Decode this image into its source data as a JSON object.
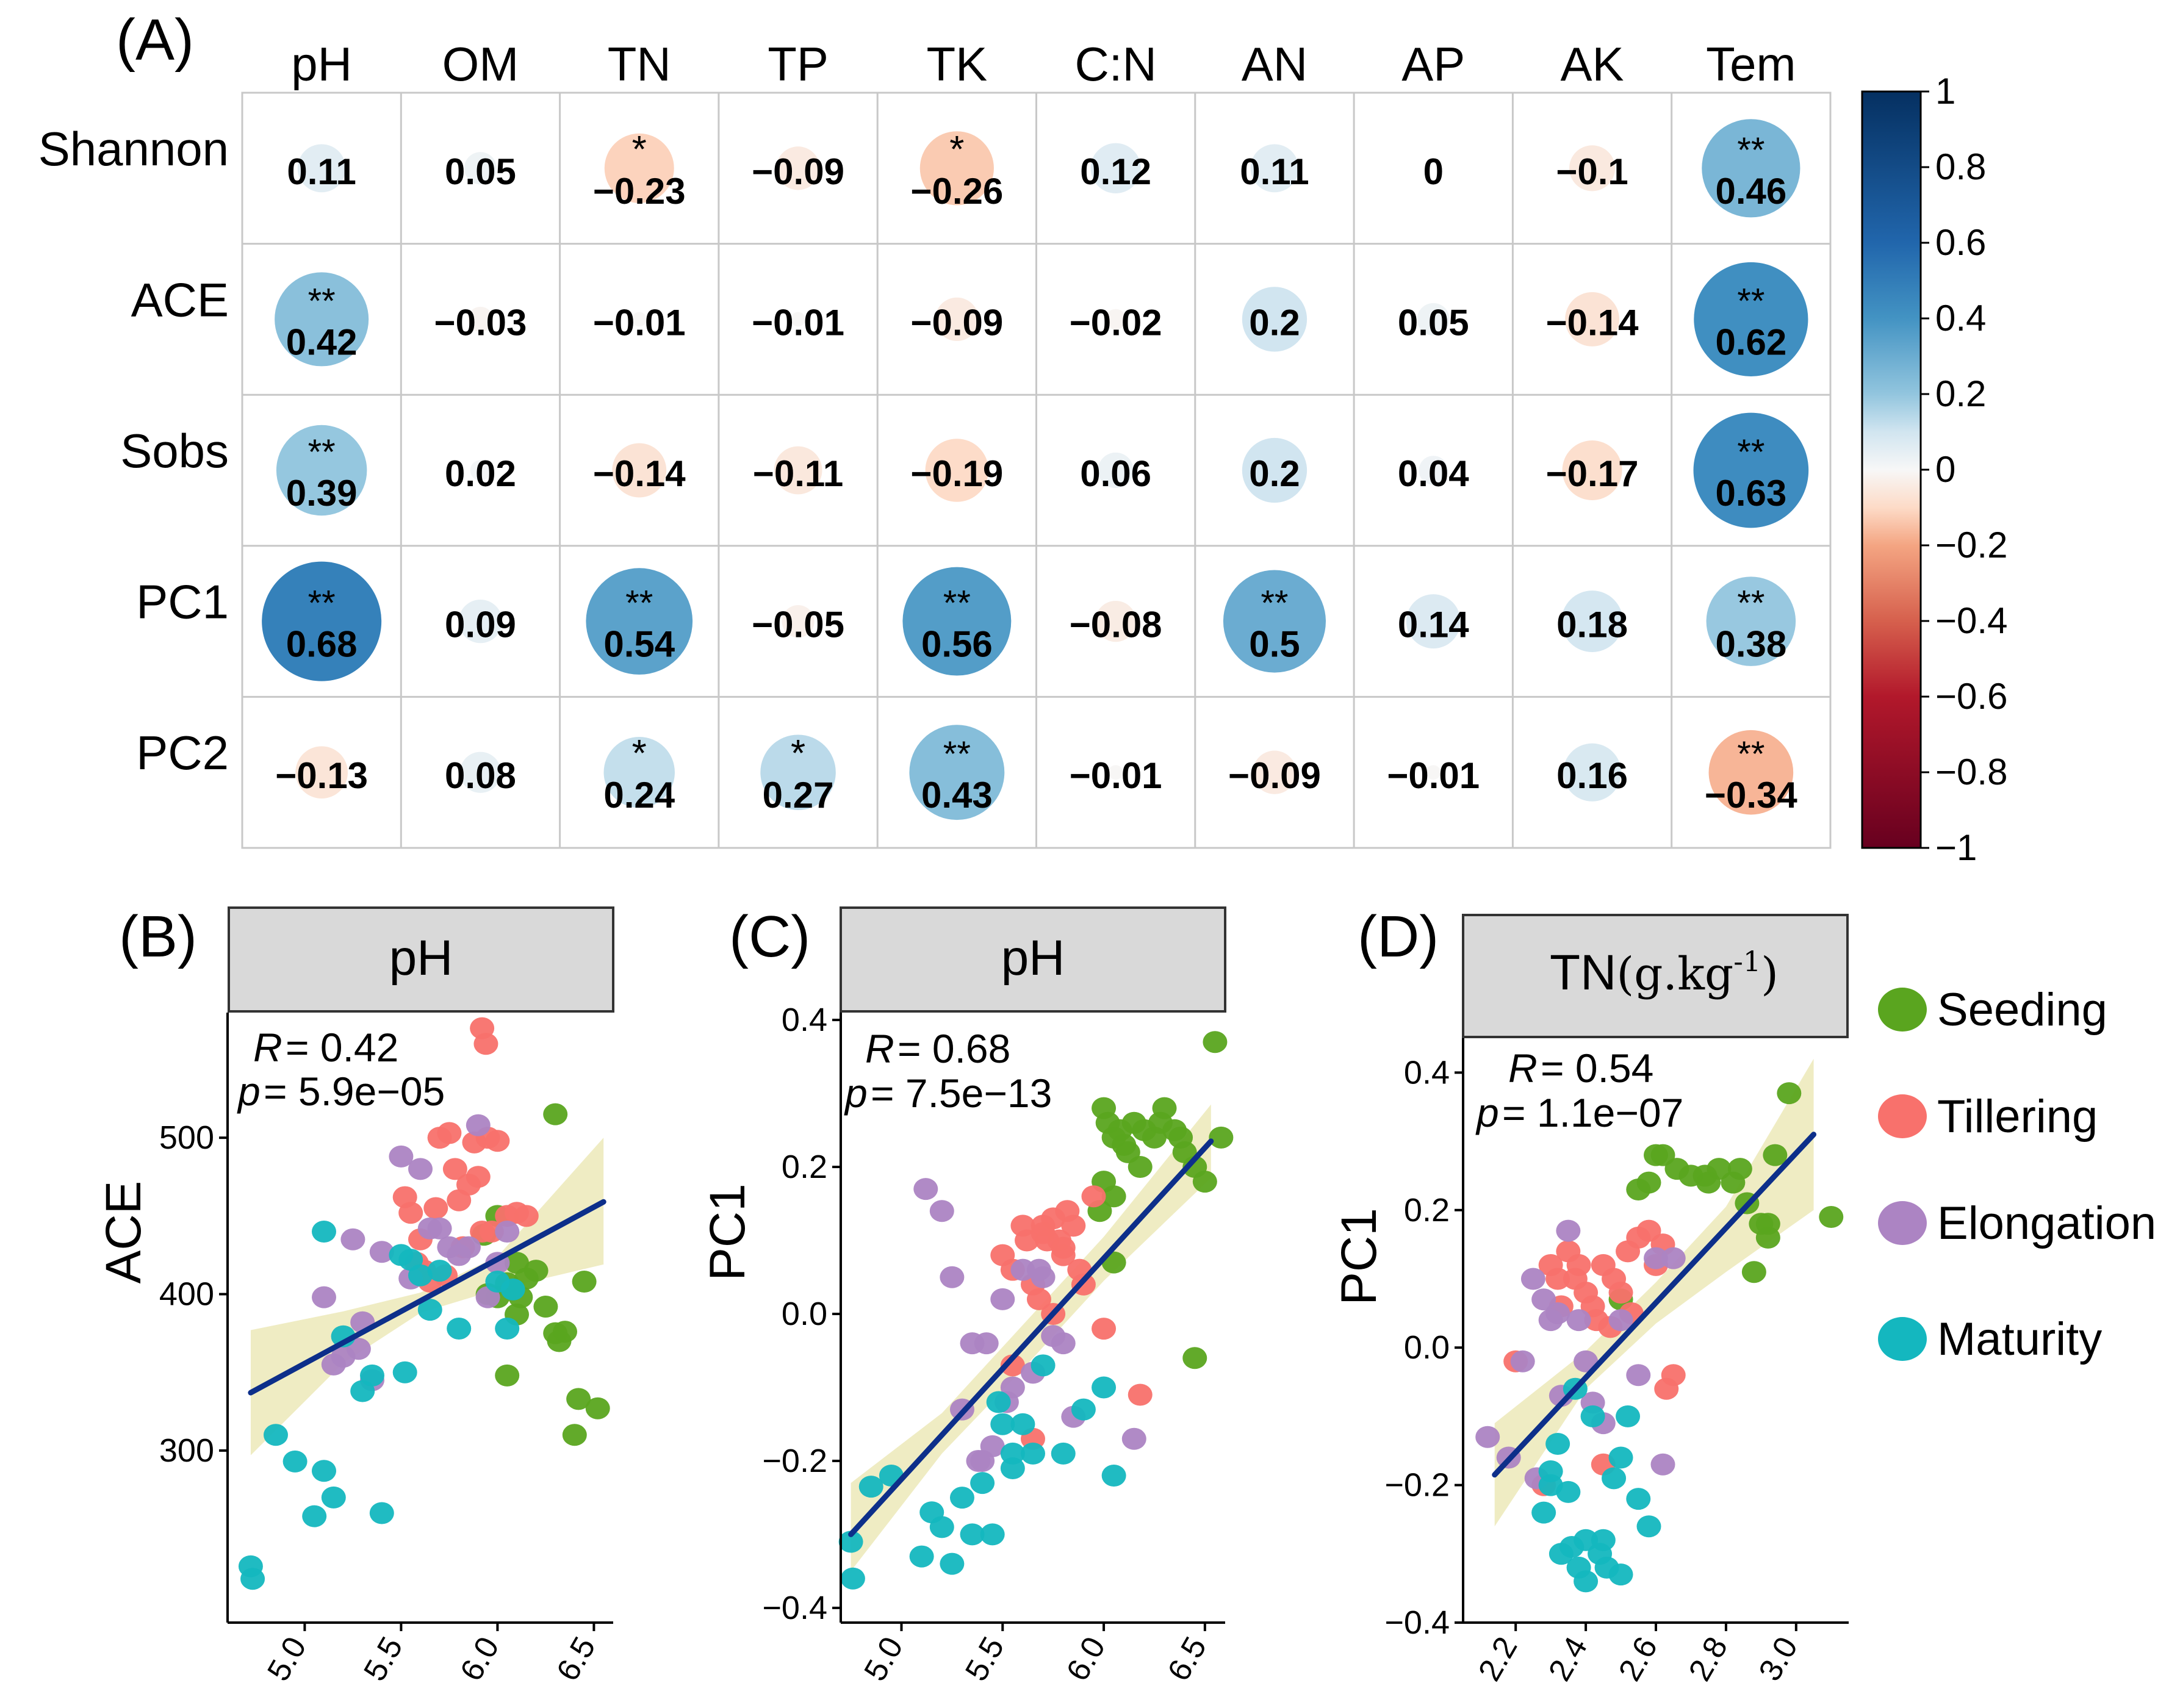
{
  "figure": {
    "colors": {
      "grid_line": "#c8c8c8",
      "panel_header_fill": "#d9d9d9",
      "regression_line": "#0d2f8a",
      "confidence_band": "#ece9b8",
      "scale_positive_strong": "#053061",
      "scale_positive_mid": "#4393c3",
      "scale_neutral": "#f7f7f7",
      "scale_negative_mid": "#f4a582",
      "scale_negative_strong": "#67001f"
    }
  },
  "chart_data": [
    {
      "type": "heatmap",
      "panel_label": "(A)",
      "columns": [
        "pH",
        "OM",
        "TN",
        "TP",
        "TK",
        "C:N",
        "AN",
        "AP",
        "AK",
        "Tem"
      ],
      "rows": [
        "Shannon",
        "ACE",
        "Sobs",
        "PC1",
        "PC2"
      ],
      "values": [
        [
          0.11,
          0.05,
          -0.23,
          -0.09,
          -0.26,
          0.12,
          0.11,
          0,
          -0.1,
          0.46
        ],
        [
          0.42,
          -0.03,
          -0.01,
          -0.01,
          -0.09,
          -0.02,
          0.2,
          0.05,
          -0.14,
          0.62
        ],
        [
          0.39,
          0.02,
          -0.14,
          -0.11,
          -0.19,
          0.06,
          0.2,
          0.04,
          -0.17,
          0.63
        ],
        [
          0.68,
          0.09,
          0.54,
          -0.05,
          0.56,
          -0.08,
          0.5,
          0.14,
          0.18,
          0.38
        ],
        [
          -0.13,
          0.08,
          0.24,
          0.27,
          0.43,
          -0.01,
          -0.09,
          -0.01,
          0.16,
          -0.34
        ]
      ],
      "value_labels": [
        [
          "0.11",
          "0.05",
          "−0.23",
          "−0.09",
          "−0.26",
          "0.12",
          "0.11",
          "0",
          "−0.1",
          "0.46"
        ],
        [
          "0.42",
          "−0.03",
          "−0.01",
          "−0.01",
          "−0.09",
          "−0.02",
          "0.2",
          "0.05",
          "−0.14",
          "0.62"
        ],
        [
          "0.39",
          "0.02",
          "−0.14",
          "−0.11",
          "−0.19",
          "0.06",
          "0.2",
          "0.04",
          "−0.17",
          "0.63"
        ],
        [
          "0.68",
          "0.09",
          "0.54",
          "−0.05",
          "0.56",
          "−0.08",
          "0.5",
          "0.14",
          "0.18",
          "0.38"
        ],
        [
          "−0.13",
          "0.08",
          "0.24",
          "0.27",
          "0.43",
          "−0.01",
          "−0.09",
          "−0.01",
          "0.16",
          "−0.34"
        ]
      ],
      "significance": [
        [
          "",
          "",
          "*",
          "",
          "*",
          "",
          "",
          "",
          "",
          "**"
        ],
        [
          "**",
          "",
          "",
          "",
          "",
          "",
          "",
          "",
          "",
          "**"
        ],
        [
          "**",
          "",
          "",
          "",
          "",
          "",
          "",
          "",
          "",
          "**"
        ],
        [
          "**",
          "",
          "**",
          "",
          "**",
          "",
          "**",
          "",
          "",
          "**"
        ],
        [
          "",
          "",
          "*",
          "*",
          "**",
          "",
          "",
          "",
          "",
          "**"
        ]
      ],
      "colorbar": {
        "range": [
          -1,
          1
        ],
        "tick_values": [
          1,
          0.8,
          0.6,
          0.4,
          0.2,
          0,
          -0.2,
          -0.4,
          -0.6,
          -0.8,
          -1
        ],
        "tick_labels": [
          "1",
          "0.8",
          "0.6",
          "0.4",
          "0.2",
          "0",
          "−0.2",
          "−0.4",
          "−0.6",
          "−0.8",
          "−1"
        ]
      }
    },
    {
      "type": "scatter",
      "panel_label": "(B)",
      "strip_title": "pH",
      "xlabel": "",
      "ylabel": "ACE",
      "xlim": [
        4.6,
        6.6
      ],
      "ylim": [
        190,
        580
      ],
      "xticks": [
        5.0,
        5.5,
        6.0,
        6.5
      ],
      "xtick_labels": [
        "5.0",
        "5.5",
        "6.0",
        "6.5"
      ],
      "yticks": [
        300,
        400,
        500
      ],
      "ytick_labels": [
        "300",
        "400",
        "500"
      ],
      "stats": {
        "r_label": "R",
        "r_value": "= 0.42",
        "p_label": "p",
        "p_value": "= 5.9e−05"
      },
      "fit": {
        "x": [
          4.72,
          6.55
        ],
        "y": [
          337,
          459
        ]
      },
      "band": {
        "x": [
          4.72,
          5.2,
          5.6,
          6.0,
          6.55
        ],
        "lower": [
          297,
          356,
          388,
          403,
          419
        ],
        "upper": [
          377,
          389,
          401,
          424,
          500
        ]
      },
      "series": [
        {
          "name": "Seeding",
          "x": [
            5.93,
            6.0,
            6.05,
            6.1,
            6.15,
            6.2,
            6.3,
            6.3,
            6.32,
            6.35,
            6.4,
            6.42,
            6.45,
            6.52,
            6.1,
            6.05,
            6.12,
            6.25,
            5.95,
            6.0,
            6.08
          ],
          "y": [
            438,
            450,
            407,
            420,
            410,
            415,
            375,
            515,
            370,
            376,
            310,
            333,
            408,
            327,
            387,
            348,
            398,
            392,
            400,
            398,
            403
          ]
        },
        {
          "name": "Tillering",
          "x": [
            5.52,
            5.55,
            5.6,
            5.62,
            5.68,
            5.7,
            5.75,
            5.78,
            5.8,
            5.85,
            5.88,
            5.9,
            5.92,
            5.95,
            6.0,
            6.05,
            6.1,
            6.15,
            5.58,
            5.65,
            5.73,
            5.82,
            5.97,
            5.92,
            5.94
          ],
          "y": [
            462,
            452,
            435,
            415,
            455,
            500,
            503,
            480,
            460,
            470,
            497,
            475,
            440,
            500,
            498,
            450,
            452,
            450,
            420,
            408,
            412,
            430,
            440,
            570,
            560
          ]
        },
        {
          "name": "Elongation",
          "x": [
            5.1,
            5.2,
            5.25,
            5.3,
            5.35,
            5.4,
            5.5,
            5.55,
            5.6,
            5.65,
            5.7,
            5.75,
            5.8,
            5.85,
            5.9,
            5.95,
            6.0,
            6.05,
            5.15,
            5.28
          ],
          "y": [
            398,
            360,
            435,
            382,
            345,
            427,
            488,
            410,
            480,
            442,
            442,
            430,
            425,
            430,
            508,
            398,
            420,
            440,
            355,
            365
          ]
        },
        {
          "name": "Maturity",
          "x": [
            4.72,
            4.73,
            4.85,
            4.95,
            5.05,
            5.1,
            5.1,
            5.15,
            5.2,
            5.3,
            5.35,
            5.4,
            5.5,
            5.55,
            5.6,
            5.65,
            5.7,
            5.8,
            6.0,
            6.05,
            6.08,
            5.52
          ],
          "y": [
            226,
            218,
            310,
            293,
            258,
            440,
            287,
            270,
            373,
            338,
            348,
            260,
            425,
            422,
            412,
            390,
            415,
            378,
            408,
            378,
            403,
            350
          ]
        }
      ]
    },
    {
      "type": "scatter",
      "panel_label": "(C)",
      "strip_title": "pH",
      "xlabel": "",
      "ylabel": "PC1",
      "xlim": [
        4.7,
        6.6
      ],
      "ylim": [
        -0.42,
        0.41
      ],
      "xticks": [
        5.0,
        5.5,
        6.0,
        6.5
      ],
      "xtick_labels": [
        "5.0",
        "5.5",
        "6.0",
        "6.5"
      ],
      "yticks": [
        -0.4,
        -0.2,
        0.0,
        0.2,
        0.4
      ],
      "ytick_labels": [
        "−0.4",
        "−0.2",
        "0.0",
        "0.2",
        "0.4"
      ],
      "stats": {
        "r_label": "R",
        "r_value": "= 0.68",
        "p_label": "p",
        "p_value": "= 7.5e−13"
      },
      "fit": {
        "x": [
          4.75,
          6.53
        ],
        "y": [
          -0.3,
          0.235
        ]
      },
      "band": {
        "x": [
          4.75,
          5.2,
          5.6,
          6.0,
          6.53
        ],
        "lower": [
          -0.35,
          -0.19,
          -0.075,
          0.045,
          0.185
        ],
        "upper": [
          -0.23,
          -0.135,
          -0.015,
          0.105,
          0.285
        ]
      },
      "series": [
        {
          "name": "Seeding",
          "x": [
            6.0,
            6.02,
            6.05,
            6.08,
            6.1,
            6.15,
            6.2,
            6.25,
            6.3,
            6.35,
            6.4,
            6.45,
            6.5,
            6.55,
            6.0,
            6.05,
            6.12,
            6.18,
            6.28,
            5.98,
            6.38,
            6.45,
            6.05,
            6.58
          ],
          "y": [
            0.28,
            0.26,
            0.24,
            0.25,
            0.23,
            0.26,
            0.25,
            0.24,
            0.28,
            0.25,
            0.22,
            0.2,
            0.18,
            0.37,
            0.18,
            0.16,
            0.22,
            0.2,
            0.26,
            0.14,
            0.24,
            -0.06,
            0.07,
            0.24
          ]
        },
        {
          "name": "Tillering",
          "x": [
            5.5,
            5.55,
            5.6,
            5.62,
            5.65,
            5.68,
            5.7,
            5.72,
            5.75,
            5.78,
            5.8,
            5.82,
            5.85,
            5.88,
            5.9,
            5.95,
            6.0,
            5.75,
            5.65,
            6.18,
            5.55,
            5.7,
            5.8
          ],
          "y": [
            0.08,
            0.06,
            0.12,
            0.1,
            0.04,
            0.02,
            0.12,
            0.1,
            0.13,
            0.1,
            0.08,
            0.14,
            0.12,
            0.06,
            0.04,
            0.16,
            -0.02,
            0.0,
            -0.17,
            -0.11,
            -0.07,
            0.11,
            0.09
          ]
        },
        {
          "name": "Elongation",
          "x": [
            5.12,
            5.2,
            5.25,
            5.3,
            5.35,
            5.4,
            5.45,
            5.5,
            5.55,
            5.6,
            5.65,
            5.7,
            5.75,
            5.8,
            5.85,
            5.42,
            5.52,
            6.15,
            5.68,
            5.38
          ],
          "y": [
            0.17,
            0.14,
            0.05,
            -0.13,
            -0.04,
            -0.2,
            -0.18,
            0.02,
            -0.1,
            0.06,
            -0.08,
            0.05,
            -0.03,
            -0.04,
            -0.14,
            -0.04,
            -0.12,
            -0.17,
            0.06,
            -0.2
          ]
        },
        {
          "name": "Maturity",
          "x": [
            4.75,
            4.76,
            4.85,
            4.95,
            5.1,
            5.15,
            5.2,
            5.25,
            5.3,
            5.35,
            5.4,
            5.45,
            5.5,
            5.55,
            5.6,
            5.65,
            5.7,
            5.8,
            5.9,
            6.0,
            6.05,
            5.48,
            5.55
          ],
          "y": [
            -0.31,
            -0.36,
            -0.235,
            -0.22,
            -0.33,
            -0.27,
            -0.29,
            -0.34,
            -0.25,
            -0.3,
            -0.23,
            -0.3,
            -0.15,
            -0.21,
            -0.15,
            -0.19,
            -0.07,
            -0.19,
            -0.13,
            -0.1,
            -0.22,
            -0.12,
            -0.19
          ]
        }
      ]
    },
    {
      "type": "scatter",
      "panel_label": "(D)",
      "strip_title": "TN",
      "strip_unit": "(g.kg",
      "strip_unit_exp": "-1",
      "strip_unit_close": ")",
      "xlabel": "",
      "ylabel": "PC1",
      "xlim": [
        2.05,
        3.15
      ],
      "ylim": [
        -0.4,
        0.45
      ],
      "xticks": [
        2.2,
        2.4,
        2.6,
        2.8,
        3.0
      ],
      "xtick_labels": [
        "2.2",
        "2.4",
        "2.6",
        "2.8",
        "3.0"
      ],
      "yticks": [
        -0.4,
        -0.2,
        0.0,
        0.2,
        0.4
      ],
      "ytick_labels": [
        "−0.4",
        "−0.2",
        "0.0",
        "0.2",
        "0.4"
      ],
      "stats": {
        "r_label": "R",
        "r_value": "= 0.54",
        "p_label": "p",
        "p_value": "= 1.1e−07"
      },
      "fit": {
        "x": [
          2.14,
          3.05
        ],
        "y": [
          -0.185,
          0.31
        ]
      },
      "band": {
        "x": [
          2.14,
          2.4,
          2.6,
          2.8,
          3.05
        ],
        "lower": [
          -0.26,
          -0.06,
          0.035,
          0.11,
          0.2
        ],
        "upper": [
          -0.11,
          -0.005,
          0.095,
          0.205,
          0.42
        ]
      },
      "series": [
        {
          "name": "Seeding",
          "x": [
            2.58,
            2.62,
            2.66,
            2.7,
            2.74,
            2.78,
            2.82,
            2.86,
            2.9,
            2.94,
            2.98,
            2.55,
            2.6,
            2.88,
            2.92,
            3.1,
            2.84,
            2.75,
            2.5,
            2.92
          ],
          "y": [
            0.24,
            0.28,
            0.26,
            0.25,
            0.25,
            0.26,
            0.24,
            0.21,
            0.18,
            0.28,
            0.37,
            0.23,
            0.28,
            0.11,
            0.16,
            0.19,
            0.26,
            0.24,
            0.07,
            0.18
          ]
        },
        {
          "name": "Tillering",
          "x": [
            2.3,
            2.32,
            2.35,
            2.38,
            2.4,
            2.42,
            2.45,
            2.48,
            2.5,
            2.52,
            2.55,
            2.58,
            2.6,
            2.62,
            2.65,
            2.33,
            2.37,
            2.43,
            2.47,
            2.53,
            2.63,
            2.2,
            2.28,
            2.45
          ],
          "y": [
            0.12,
            0.1,
            0.14,
            0.12,
            0.08,
            0.06,
            0.12,
            0.1,
            0.08,
            0.14,
            0.16,
            0.17,
            0.12,
            0.15,
            -0.04,
            0.06,
            0.1,
            0.04,
            0.03,
            0.05,
            -0.06,
            -0.02,
            -0.2,
            -0.17
          ]
        },
        {
          "name": "Elongation",
          "x": [
            2.12,
            2.18,
            2.22,
            2.25,
            2.28,
            2.3,
            2.32,
            2.35,
            2.38,
            2.4,
            2.42,
            2.45,
            2.5,
            2.55,
            2.6,
            2.62,
            2.65,
            2.26,
            2.33
          ],
          "y": [
            -0.13,
            -0.16,
            -0.02,
            0.1,
            0.07,
            0.04,
            0.05,
            0.17,
            0.04,
            -0.02,
            -0.08,
            -0.11,
            0.04,
            -0.04,
            0.13,
            -0.17,
            0.13,
            -0.19,
            -0.07
          ]
        },
        {
          "name": "Maturity",
          "x": [
            2.28,
            2.3,
            2.32,
            2.33,
            2.35,
            2.37,
            2.38,
            2.4,
            2.42,
            2.44,
            2.46,
            2.48,
            2.5,
            2.52,
            2.55,
            2.58,
            2.3,
            2.36,
            2.4,
            2.45,
            2.5
          ],
          "y": [
            -0.24,
            -0.2,
            -0.14,
            -0.3,
            -0.21,
            -0.06,
            -0.32,
            -0.28,
            -0.1,
            -0.3,
            -0.32,
            -0.19,
            -0.16,
            -0.1,
            -0.22,
            -0.26,
            -0.18,
            -0.29,
            -0.34,
            -0.28,
            -0.33
          ]
        }
      ]
    }
  ],
  "legend": [
    {
      "label": "Seeding",
      "color": "#5aa51f"
    },
    {
      "label": "Tillering",
      "color": "#f8716c"
    },
    {
      "label": "Elongation",
      "color": "#ac84c3"
    },
    {
      "label": "Maturity",
      "color": "#14b7bf"
    }
  ]
}
